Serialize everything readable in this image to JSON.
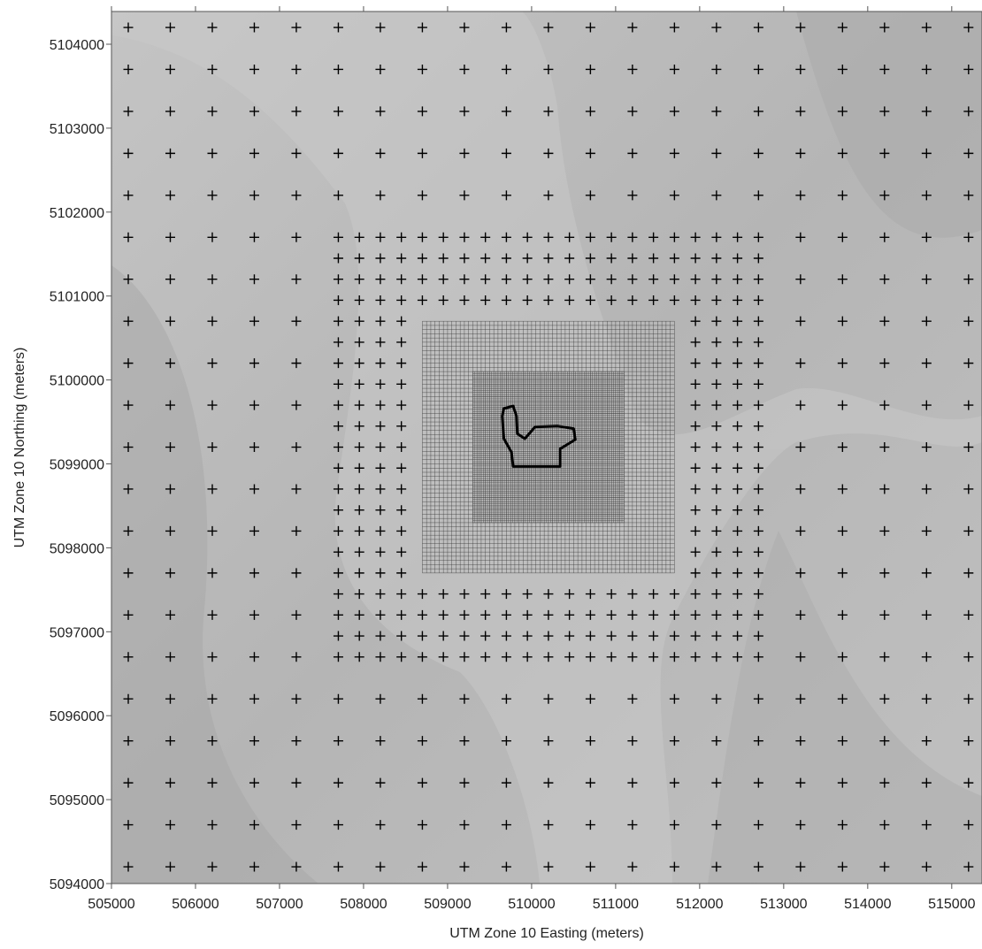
{
  "chart_data": {
    "type": "receptor-map",
    "xlabel": "UTM Zone 10 Easting (meters)",
    "ylabel": "UTM Zone 10 Northing (meters)",
    "xlim": [
      505000,
      515360
    ],
    "ylim": [
      5094000,
      5104390
    ],
    "xticks": [
      505000,
      506000,
      507000,
      508000,
      509000,
      510000,
      511000,
      512000,
      513000,
      514000,
      515000
    ],
    "yticks": [
      5094000,
      5095000,
      5096000,
      5097000,
      5098000,
      5099000,
      5100000,
      5101000,
      5102000,
      5103000,
      5104000
    ],
    "grids": [
      {
        "style": "cross",
        "xlim": [
          505200,
          515200
        ],
        "ylim": [
          5094200,
          5104200
        ],
        "step": 500
      },
      {
        "style": "cross",
        "xlim": [
          507700,
          512700
        ],
        "ylim": [
          5096700,
          5101700
        ],
        "step": 250
      },
      {
        "style": "mesh",
        "xlim": [
          508700,
          511700
        ],
        "ylim": [
          5097700,
          5100700
        ],
        "step": 50
      },
      {
        "style": "mesh",
        "xlim": [
          509300,
          511100
        ],
        "ylim": [
          5098300,
          5100100
        ],
        "step": 25
      }
    ],
    "facility": {
      "color": "#000000",
      "x": [
        509670,
        509780,
        509820,
        509830,
        509920,
        510040,
        510310,
        510500,
        510520,
        510340,
        510340,
        509780,
        509760,
        509670,
        509650
      ],
      "y": [
        5099660,
        5099690,
        5099570,
        5099360,
        5099300,
        5099440,
        5099450,
        5099420,
        5099290,
        5099180,
        5098970,
        5098970,
        5099140,
        5099300,
        5099570
      ]
    }
  }
}
